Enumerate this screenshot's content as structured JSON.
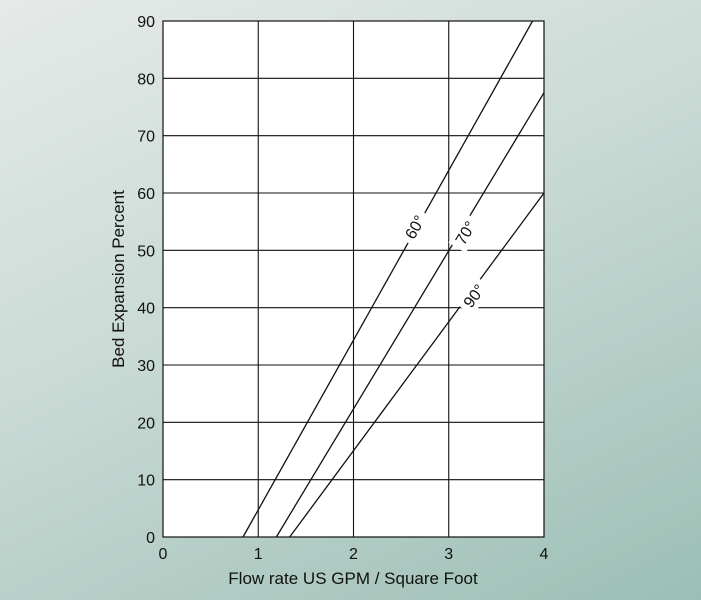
{
  "chart_data": {
    "type": "line",
    "xlabel": "Flow rate US GPM / Square Foot",
    "ylabel": "Bed Expansion Percent",
    "xlim": [
      0,
      4
    ],
    "ylim": [
      0,
      90
    ],
    "x_ticks": [
      "0",
      "1",
      "2",
      "3",
      "4"
    ],
    "y_ticks": [
      "0",
      "10",
      "20",
      "30",
      "40",
      "50",
      "60",
      "70",
      "80",
      "90"
    ],
    "grid": true,
    "legend": "none",
    "series": [
      {
        "name": "60°",
        "points": [
          [
            0.84,
            0
          ],
          [
            3.88,
            90
          ]
        ],
        "label_at": [
          2.65,
          54
        ]
      },
      {
        "name": "70°",
        "points": [
          [
            1.19,
            0
          ],
          [
            4.0,
            77.5
          ]
        ],
        "label_at": [
          3.18,
          53
        ]
      },
      {
        "name": "90°",
        "points": [
          [
            1.33,
            0
          ],
          [
            4.0,
            60
          ]
        ],
        "label_at": [
          3.27,
          42
        ]
      }
    ]
  }
}
